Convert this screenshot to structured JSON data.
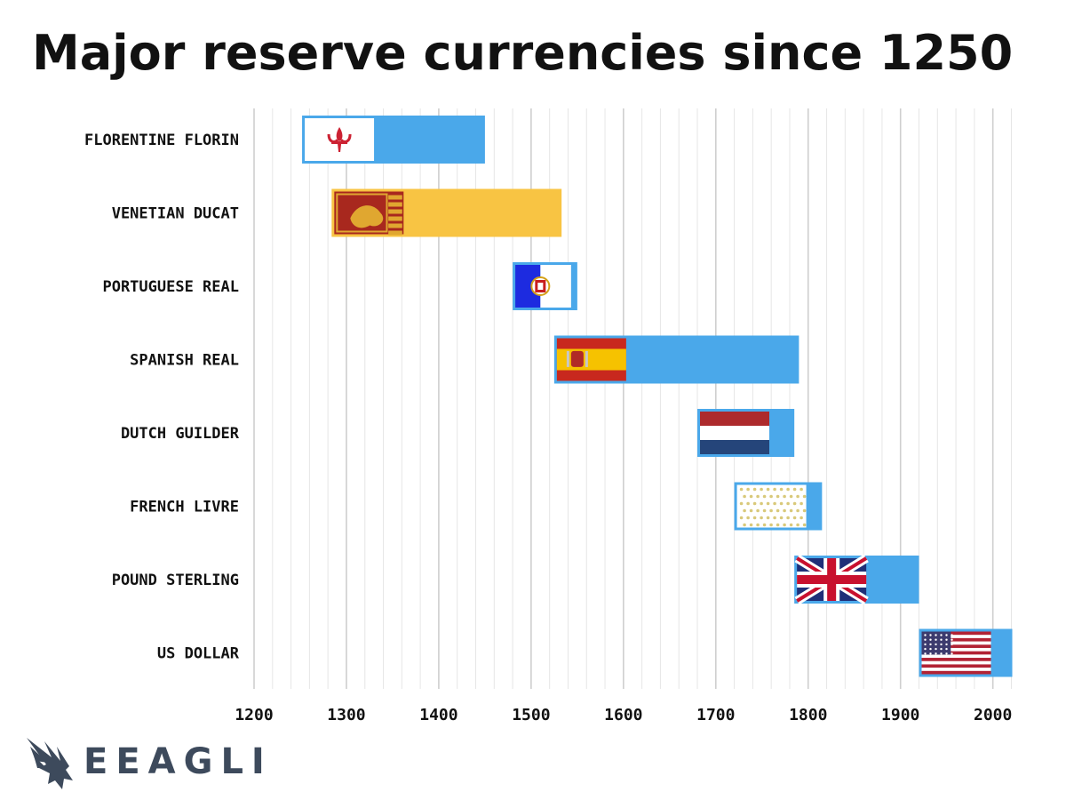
{
  "brand": {
    "name": "EEAGLI",
    "logo_icon": "eagle-icon"
  },
  "chart_data": {
    "type": "bar",
    "orientation": "horizontal-range",
    "title": "Major reserve currencies since 1250",
    "xlabel": "",
    "ylabel": "",
    "xlim": [
      1200,
      2025
    ],
    "xticks": [
      1200,
      1300,
      1400,
      1500,
      1600,
      1700,
      1800,
      1900,
      2000
    ],
    "minor_grid_step": 20,
    "grid": true,
    "bar_color": "#4aa8ea",
    "categories": [
      "Florentine Florin",
      "Venetian Ducat",
      "Portuguese Real",
      "Spanish Real",
      "Dutch Guilder",
      "French Livre",
      "Pound Sterling",
      "US Dollar"
    ],
    "ranges": [
      {
        "start": 1252,
        "end": 1450,
        "color": "#4aa8ea",
        "flag": "florence-flag-icon"
      },
      {
        "start": 1284,
        "end": 1533,
        "color": "#f8c443",
        "flag": "venice-flag-icon"
      },
      {
        "start": 1480,
        "end": 1550,
        "color": "#4aa8ea",
        "flag": "portugal-flag-icon"
      },
      {
        "start": 1525,
        "end": 1790,
        "color": "#4aa8ea",
        "flag": "spain-flag-icon"
      },
      {
        "start": 1680,
        "end": 1785,
        "color": "#4aa8ea",
        "flag": "netherlands-flag-icon"
      },
      {
        "start": 1720,
        "end": 1815,
        "color": "#4aa8ea",
        "flag": "france-flag-icon"
      },
      {
        "start": 1785,
        "end": 1920,
        "color": "#4aa8ea",
        "flag": "uk-flag-icon"
      },
      {
        "start": 1920,
        "end": 2021,
        "color": "#4aa8ea",
        "flag": "usa-flag-icon"
      }
    ]
  }
}
